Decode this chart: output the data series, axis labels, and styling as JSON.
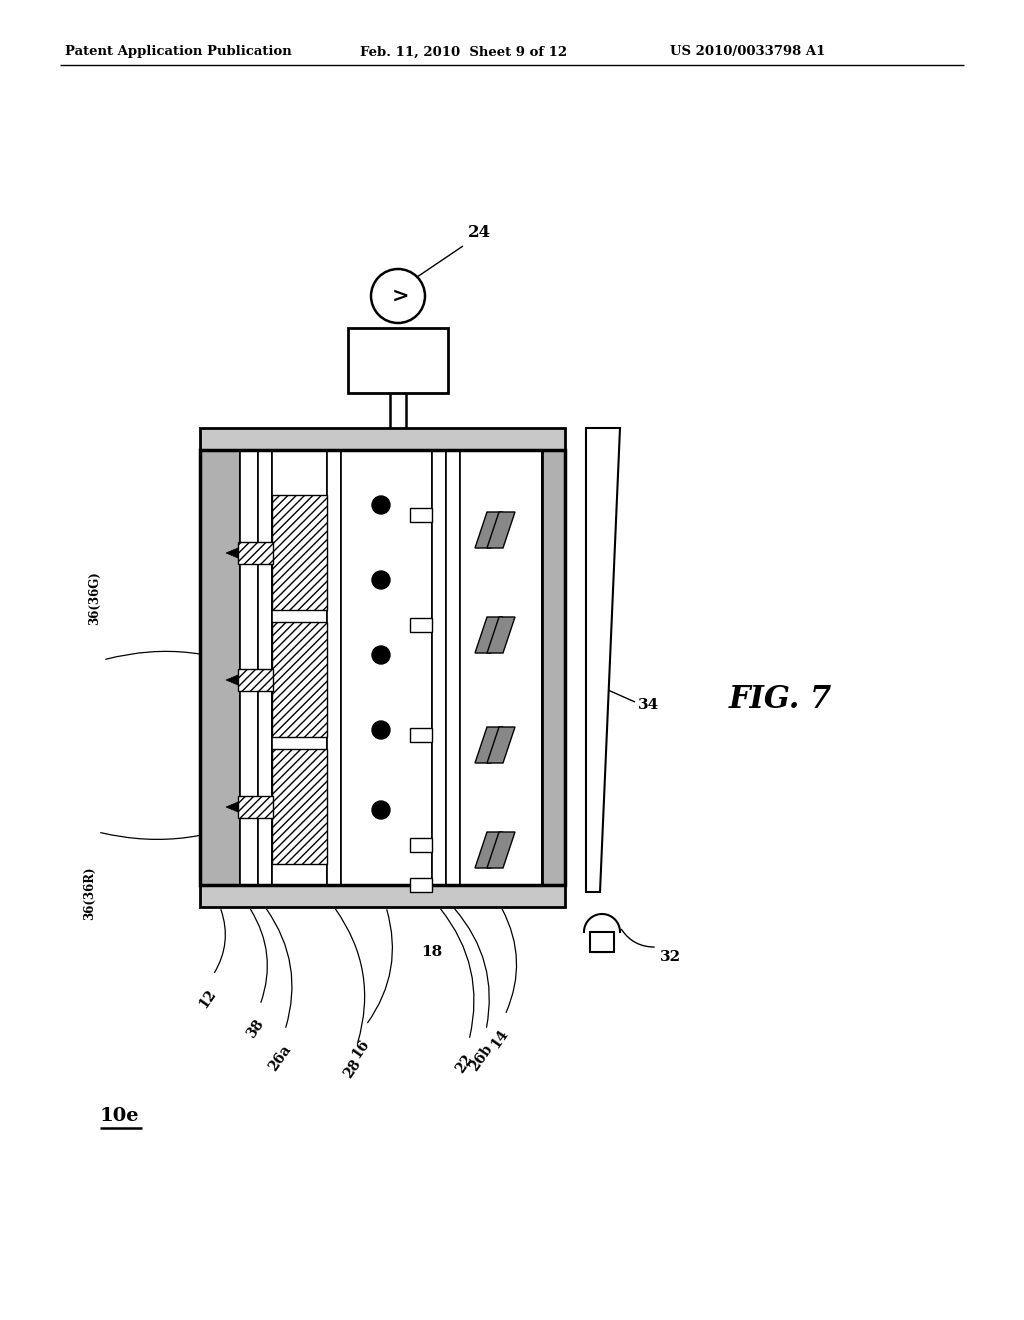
{
  "header_left": "Patent Application Publication",
  "header_mid": "Feb. 11, 2010  Sheet 9 of 12",
  "header_right": "US 2010/0033798 A1",
  "fig_label": "FIG. 7",
  "device_label": "10e",
  "bg_color": "#ffffff",
  "line_color": "#000000",
  "lw_main": 2.0,
  "lw_thin": 1.2,
  "lw_thick": 2.8
}
